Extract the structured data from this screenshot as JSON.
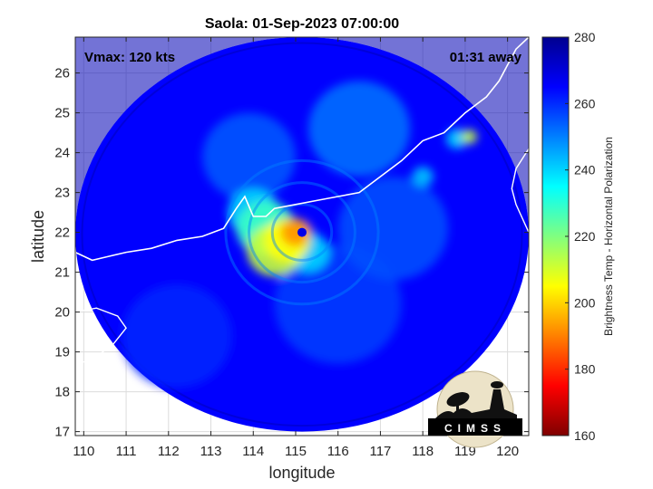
{
  "chart_data": {
    "type": "heatmap",
    "title": "Saola: 01-Sep-2023 07:00:00",
    "xlabel": "longitude",
    "ylabel": "latitude",
    "xlim": [
      109.8,
      120.5
    ],
    "ylim": [
      16.9,
      26.9
    ],
    "xticks": [
      110,
      111,
      112,
      113,
      114,
      115,
      116,
      117,
      118,
      119,
      120
    ],
    "yticks": [
      17,
      18,
      19,
      20,
      21,
      22,
      23,
      24,
      25,
      26
    ],
    "grid": true,
    "annotations": {
      "vmax": "Vmax: 120 kts",
      "time_away": "01:31 away"
    },
    "colorbar": {
      "label": "Brightness Temp - Horizontal Polarization",
      "range": [
        160,
        280
      ],
      "ticks": [
        160,
        180,
        200,
        220,
        240,
        260,
        280
      ],
      "colormap": [
        "#7f0000",
        "#ff0000",
        "#ff8000",
        "#ffff00",
        "#80ff80",
        "#00ffff",
        "#0080ff",
        "#0000ff",
        "#00008f"
      ],
      "placement": "right"
    },
    "swath": {
      "center_lon": 115.15,
      "center_lat": 21.95,
      "radius_lon": 5.35,
      "radius_lat": 4.95,
      "background_value": 265
    },
    "cells": [
      {
        "lon": 115.15,
        "lat": 22.0,
        "r": 0.3,
        "value": 268
      },
      {
        "lon": 115.0,
        "lat": 22.0,
        "r": 0.35,
        "value": 192
      },
      {
        "lon": 114.8,
        "lat": 21.8,
        "r": 0.55,
        "value": 205
      },
      {
        "lon": 114.5,
        "lat": 21.55,
        "r": 0.65,
        "value": 212
      },
      {
        "lon": 114.3,
        "lat": 22.1,
        "r": 0.7,
        "value": 228
      },
      {
        "lon": 115.3,
        "lat": 21.5,
        "r": 0.5,
        "value": 240
      },
      {
        "lon": 114.0,
        "lat": 22.5,
        "r": 0.6,
        "value": 240
      },
      {
        "lon": 119.1,
        "lat": 24.4,
        "r": 0.18,
        "value": 212
      },
      {
        "lon": 118.8,
        "lat": 24.35,
        "r": 0.25,
        "value": 240
      },
      {
        "lon": 118.0,
        "lat": 23.4,
        "r": 0.25,
        "value": 242
      },
      {
        "lon": 116.5,
        "lat": 24.6,
        "r": 1.2,
        "value": 252
      },
      {
        "lon": 113.9,
        "lat": 23.9,
        "r": 1.1,
        "value": 255
      },
      {
        "lon": 117.3,
        "lat": 22.1,
        "r": 1.3,
        "value": 256
      },
      {
        "lon": 116.0,
        "lat": 20.2,
        "r": 1.5,
        "value": 258
      },
      {
        "lon": 112.2,
        "lat": 19.4,
        "r": 1.3,
        "value": 261
      }
    ],
    "logo": {
      "text": "CIMSS"
    }
  }
}
